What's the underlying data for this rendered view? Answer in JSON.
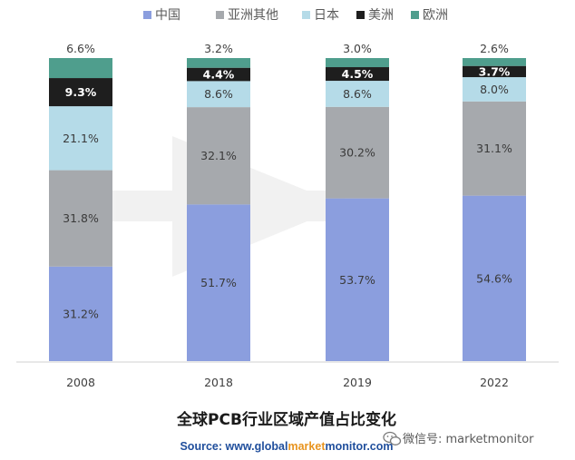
{
  "chart_data": {
    "type": "bar",
    "stacked": true,
    "percent_stacked": true,
    "title": "全球PCB行业区域产值占比变化",
    "categories": [
      "2008",
      "2018",
      "2019",
      "2022"
    ],
    "series": [
      {
        "name": "中国",
        "color": "#8b9ede",
        "label_color": "#3a3a3a",
        "values": [
          31.2,
          51.7,
          53.7,
          54.6
        ],
        "labels": [
          "31.2%",
          "51.7%",
          "53.7%",
          "54.6%"
        ]
      },
      {
        "name": "亚洲其他",
        "color": "#a6a9ad",
        "label_color": "#3a3a3a",
        "values": [
          31.8,
          32.1,
          30.2,
          31.1
        ],
        "labels": [
          "31.8%",
          "32.1%",
          "30.2%",
          "31.1%"
        ]
      },
      {
        "name": "日本",
        "color": "#b5dbe8",
        "label_color": "#3a3a3a",
        "values": [
          21.1,
          8.6,
          8.6,
          8.0
        ],
        "labels": [
          "21.1%",
          "8.6%",
          "8.6%",
          "8.0%"
        ]
      },
      {
        "name": "美洲",
        "color": "#1e1e1e",
        "label_color": "#ffffff",
        "values": [
          9.3,
          4.4,
          4.5,
          3.7
        ],
        "labels": [
          "9.3%",
          "4.4%",
          "4.5%",
          "3.7%"
        ]
      },
      {
        "name": "欧洲",
        "color": "#4f9e8d",
        "label_color": "#3a3a3a",
        "values": [
          6.6,
          3.2,
          3.0,
          2.6
        ],
        "labels": [
          "6.6%",
          "3.2%",
          "3.0%",
          "2.6%"
        ]
      }
    ],
    "legend_position": "top",
    "grid": false
  },
  "source": {
    "prefix": "Source: www.",
    "a": "global",
    "b": "market",
    "c": "monitor",
    "suffix": ".com",
    "color_a": "#1f4e9c",
    "color_b": "#e8941f",
    "color_c": "#1f4e9c"
  },
  "watermark": {
    "text": "微信号: marketmonitor",
    "icon": "wechat-icon"
  }
}
